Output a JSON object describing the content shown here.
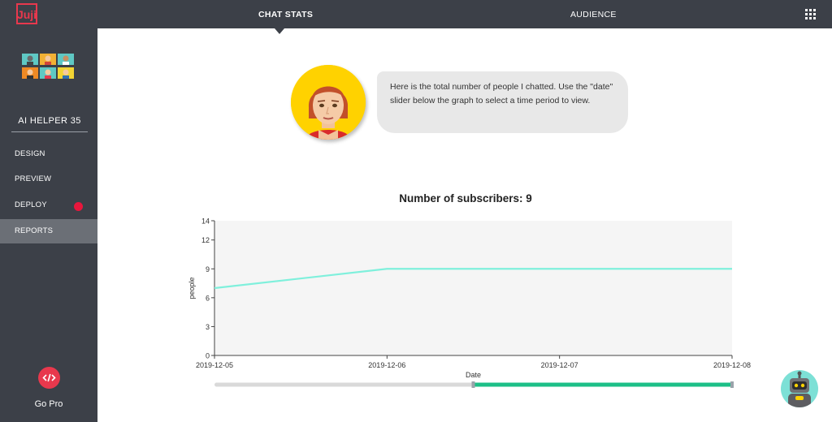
{
  "header": {
    "logo_text": "Juji",
    "tabs": [
      {
        "label": "CHAT STATS",
        "active": true
      },
      {
        "label": "AUDIENCE",
        "active": false
      }
    ],
    "apps_icon": "grid-icon"
  },
  "sidebar": {
    "bot_name": "AI HELPER 35",
    "items": [
      {
        "label": "DESIGN"
      },
      {
        "label": "PREVIEW"
      },
      {
        "label": "DEPLOY",
        "badge_color": "#e8163c"
      },
      {
        "label": "REPORTS",
        "active": true
      }
    ],
    "go_pro": {
      "icon": "code-icon",
      "label": "Go Pro"
    }
  },
  "chat": {
    "message": "Here is the total number of people I chatted. Use the \"date\" slider below the graph to select a time period to view."
  },
  "colors": {
    "topbar": "#3c4048",
    "line": "#7ff0dc",
    "slider_selected": "#1dbf87",
    "deploy_dot": "#e8163c",
    "gopro": "#e8384d"
  },
  "chart_data": {
    "type": "line",
    "title": "Number of subscribers: 9",
    "xlabel": "Date",
    "ylabel": "people",
    "x": [
      "2019-12-05",
      "2019-12-06",
      "2019-12-07",
      "2019-12-08"
    ],
    "series": [
      {
        "values": [
          7,
          9,
          9,
          9
        ]
      }
    ],
    "yticks": [
      0,
      3,
      6,
      9,
      12,
      14
    ],
    "ylim": [
      0,
      14
    ],
    "grid": false,
    "slider_range": [
      "2019-12-06 12:00",
      "2019-12-08"
    ]
  }
}
